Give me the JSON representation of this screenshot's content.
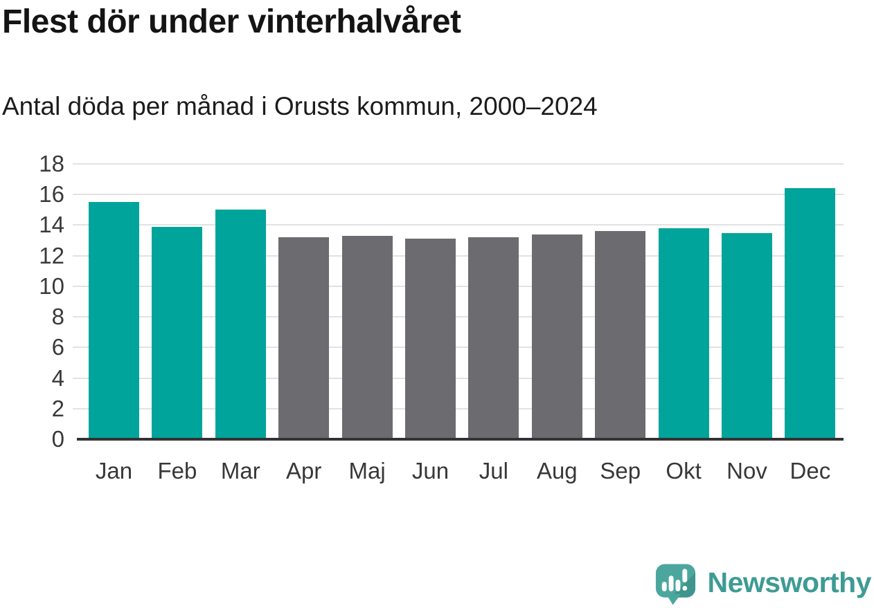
{
  "header": {
    "title": "Flest dör under vinterhalvåret",
    "subtitle": "Antal döda per månad i Orusts kommun, 2000–2024"
  },
  "chart_data": {
    "type": "bar",
    "title": "Flest dör under vinterhalvåret",
    "subtitle": "Antal döda per månad i Orusts kommun, 2000–2024",
    "categories": [
      "Jan",
      "Feb",
      "Mar",
      "Apr",
      "Maj",
      "Jun",
      "Jul",
      "Aug",
      "Sep",
      "Okt",
      "Nov",
      "Dec"
    ],
    "values": [
      15.5,
      13.9,
      15.0,
      13.2,
      13.3,
      13.1,
      13.2,
      13.4,
      13.6,
      13.8,
      13.5,
      16.4
    ],
    "highlighted": [
      true,
      true,
      true,
      false,
      false,
      false,
      false,
      false,
      false,
      true,
      true,
      true
    ],
    "xlabel": "",
    "ylabel": "",
    "ylim": [
      0,
      18
    ],
    "yticks": [
      0,
      2,
      4,
      6,
      8,
      10,
      12,
      14,
      16,
      18
    ],
    "grid": "horizontal",
    "legend_position": "none",
    "colors": {
      "highlight_bar": "#00A49B",
      "default_bar": "#6C6B70",
      "gridline": "#E2E2E2",
      "axis_line": "#333333",
      "tick_label": "#3A3A3A"
    }
  },
  "footer": {
    "brand_name": "Newsworthy",
    "brand_text_color": "#3E9B94",
    "logo": {
      "icon": "speech-bubble-bar-chart-icon",
      "bubble_color": "#4BA79E",
      "bubble_shade_color": "#3F948C",
      "glyph_color": "#FFFFFF"
    }
  }
}
